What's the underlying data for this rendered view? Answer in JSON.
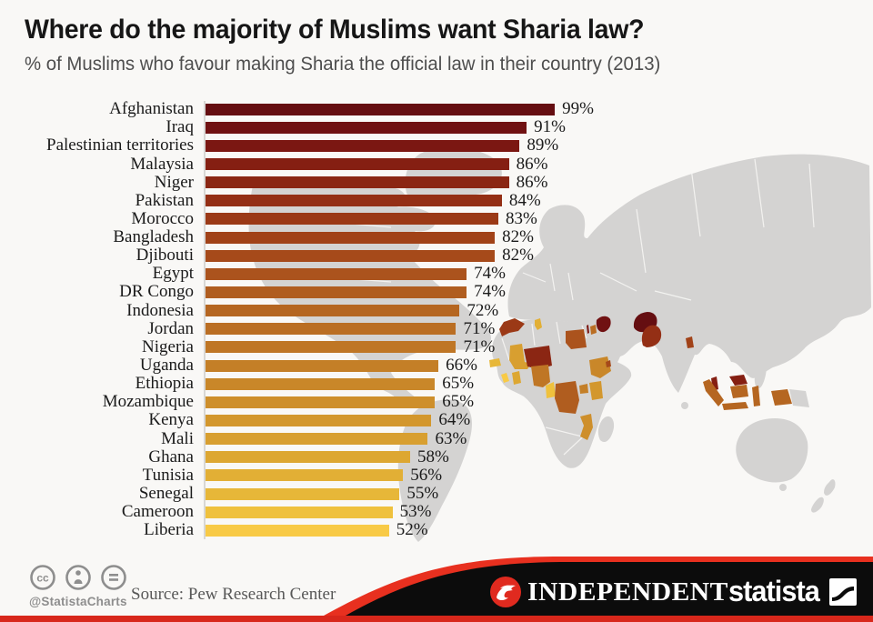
{
  "page": {
    "title": "Where do the majority of Muslims want Sharia law?",
    "subtitle": "% of Muslims who favour making Sharia the official law in their country (2013)"
  },
  "chart_data": {
    "type": "bar",
    "orientation": "horizontal",
    "title": "Where do the majority of Muslims want Sharia law?",
    "subtitle": "% of Muslims who favour making Sharia the official law in their country (2013)",
    "unit": "%",
    "xlim": [
      0,
      100
    ],
    "grid": false,
    "legend": false,
    "categories": [
      "Afghanistan",
      "Iraq",
      "Palestinian territories",
      "Malaysia",
      "Niger",
      "Pakistan",
      "Morocco",
      "Bangladesh",
      "Djibouti",
      "Egypt",
      "DR Congo",
      "Indonesia",
      "Jordan",
      "Nigeria",
      "Uganda",
      "Ethiopia",
      "Mozambique",
      "Kenya",
      "Mali",
      "Ghana",
      "Tunisia",
      "Senegal",
      "Cameroon",
      "Liberia"
    ],
    "values": [
      99,
      91,
      89,
      86,
      86,
      84,
      83,
      82,
      82,
      74,
      74,
      72,
      71,
      71,
      66,
      65,
      65,
      64,
      63,
      58,
      56,
      55,
      53,
      52
    ],
    "bar_colors": [
      "#650e11",
      "#701112",
      "#7b1712",
      "#851f12",
      "#8b2613",
      "#942f15",
      "#9b3916",
      "#a14218",
      "#a64a1a",
      "#ab531d",
      "#b05d1f",
      "#b56621",
      "#ba6e23",
      "#bf7625",
      "#c47f27",
      "#c98729",
      "#ce8f2b",
      "#d3972d",
      "#d89f30",
      "#dda732",
      "#e2af35",
      "#e7b738",
      "#efc13d",
      "#f8ca46"
    ],
    "background_map": "world map with surveyed countries shaded in the same colour as their bar"
  },
  "footer": {
    "handle": "@StatistaCharts",
    "source": "Source: Pew Research Center",
    "independent_label": "INDEPENDENT",
    "statista_label": "statista",
    "cc_icons": [
      "cc-license-icon",
      "attribution-person-icon",
      "no-derivatives-equals-icon"
    ]
  },
  "colors": {
    "background": "#f9f8f6",
    "map_land": "#d4d3d2",
    "axis_line": "#d8d7d4",
    "text_dark": "#161616",
    "text_subtitle": "#4e4e4e",
    "footer_black": "#0c0c0c",
    "swoosh_red": "#e8301f",
    "bottom_strip_red": "#d8271b",
    "independent_red": "#e02a1f",
    "cc_gray": "#8e8e8e",
    "source_gray": "#585858"
  }
}
